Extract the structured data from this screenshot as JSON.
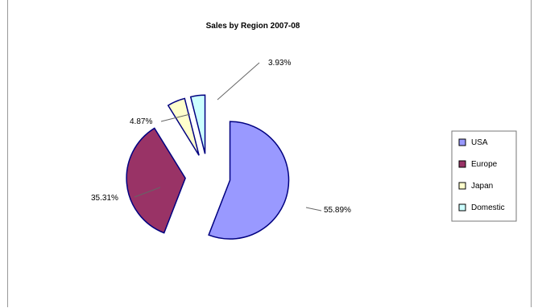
{
  "chart_data": {
    "type": "pie",
    "title": "Sales by Region 2007-08",
    "categories": [
      "USA",
      "Europe",
      "Japan",
      "Domestic"
    ],
    "values": [
      55.89,
      35.31,
      4.87,
      3.93
    ],
    "data_labels": [
      "55.89%",
      "35.31%",
      "4.87%",
      "3.93%"
    ],
    "exploded": true,
    "legend_position": "right",
    "colors": [
      "#9999ff",
      "#993366",
      "#ffffcc",
      "#ccffff"
    ]
  }
}
